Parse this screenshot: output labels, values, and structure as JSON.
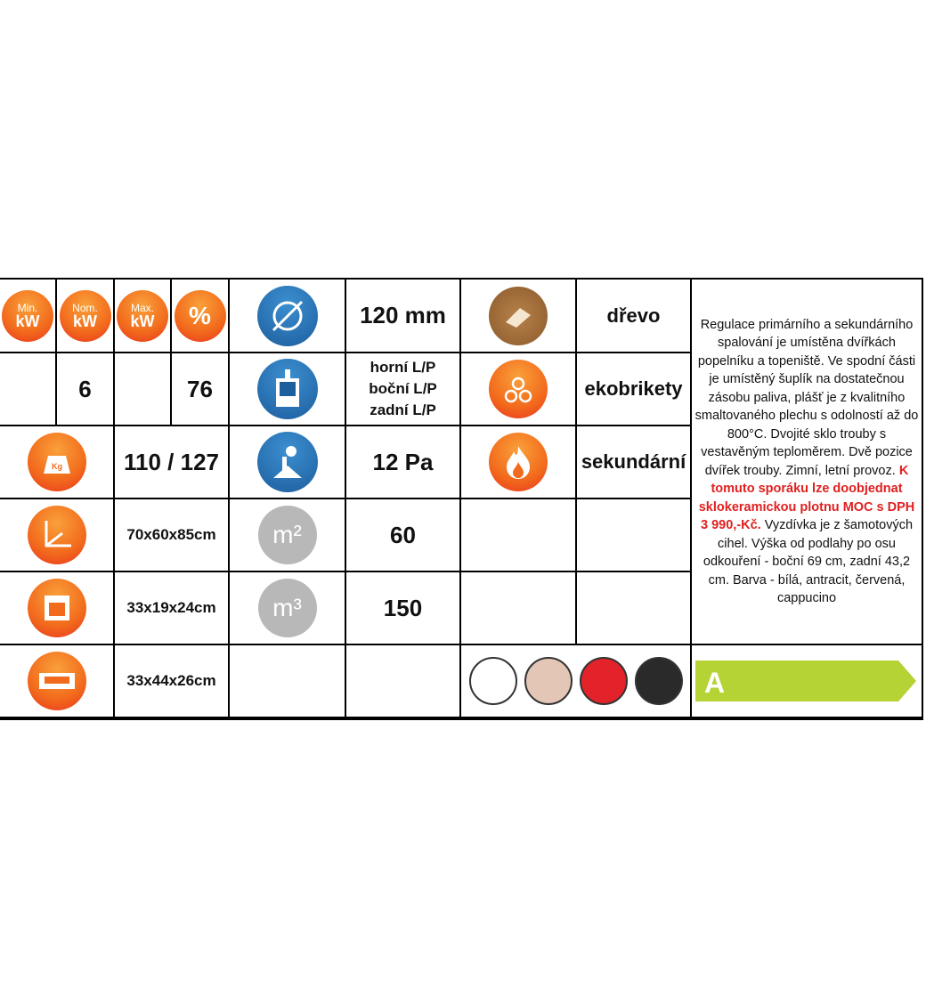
{
  "header_icons": {
    "min_kw": {
      "top": "Min.",
      "bottom": "kW"
    },
    "nom_kw": {
      "top": "Nom.",
      "bottom": "kW"
    },
    "max_kw": {
      "top": "Max.",
      "bottom": "kW"
    },
    "efficiency": "%"
  },
  "values": {
    "min_kw": "",
    "nom_kw": "6",
    "max_kw": "",
    "efficiency": "76",
    "flue_diameter": "120 mm",
    "flue_outlet": [
      "horní L/P",
      "boční L/P",
      "zadní L/P"
    ],
    "weight": "110 / 127",
    "dimensions": "70x60x85cm",
    "oven": "33x19x24cm",
    "drawer": "33x44x26cm",
    "draft": "12 Pa",
    "area": "60",
    "volume": "150"
  },
  "units": {
    "area": "m²",
    "volume": "m³"
  },
  "fuels": [
    "dřevo",
    "ekobrikety",
    "sekundární"
  ],
  "description": {
    "text": "Regulace primárního a sekundárního spalování je umístěna dvířkách popelníku a topeniště. Ve spodní části je umístěný šuplík na dostatečnou zásobu paliva, plášť je z kvalitního smaltovaného plechu s odolností až do 800°C. Dvojité sklo trouby s vestavěným teploměrem. Dvě pozice dvířek trouby. Zimní, letní provoz. ",
    "highlight": "K tomuto sporáku lze doobjednat sklokeramickou plotnu MOC s DPH 3 990,-Kč.",
    "text2": " Vyzdívka je z šamotových cihel. Výška od podlahy po osu odkouření - boční 69 cm, zadní 43,2 cm. Barva - bílá, antracit, červená, cappucino"
  },
  "colors": [
    "#ffffff",
    "#e3c6b5",
    "#e3222a",
    "#2a2a2a"
  ],
  "energy_class": {
    "label": "A",
    "color": "#b5d334"
  }
}
